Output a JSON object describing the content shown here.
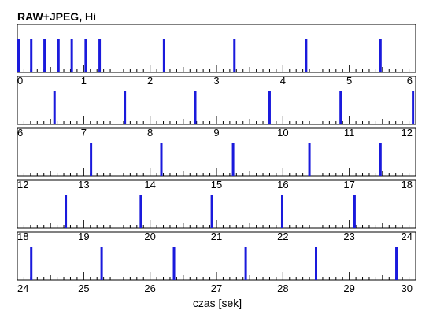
{
  "chart_data": {
    "type": "bar",
    "title": "RAW+JPEG, Hi",
    "xlabel": "czas [sek]",
    "ylabel": "",
    "xlim": [
      0,
      30
    ],
    "seconds_per_row": 6,
    "row_tick_labels": [
      [
        "0",
        "1",
        "2",
        "3",
        "4",
        "5",
        "6"
      ],
      [
        "6",
        "7",
        "8",
        "9",
        "10",
        "11",
        "12"
      ],
      [
        "12",
        "13",
        "14",
        "15",
        "16",
        "17",
        "18"
      ],
      [
        "18",
        "19",
        "20",
        "21",
        "22",
        "23",
        "24"
      ],
      [
        "24",
        "25",
        "26",
        "27",
        "28",
        "29",
        "30"
      ]
    ],
    "series": [
      {
        "values": [
          0.0,
          0.21,
          0.41,
          0.62,
          0.82,
          1.03,
          1.24,
          2.21,
          3.27,
          4.35,
          5.47,
          6.56,
          7.62,
          8.68,
          9.8,
          10.87,
          11.96,
          13.11,
          14.17,
          15.25,
          16.4,
          17.47,
          18.73,
          19.86,
          20.93,
          21.99,
          23.08,
          24.21,
          25.27,
          26.36,
          27.44,
          28.5,
          29.71
        ]
      }
    ],
    "grid": false
  }
}
